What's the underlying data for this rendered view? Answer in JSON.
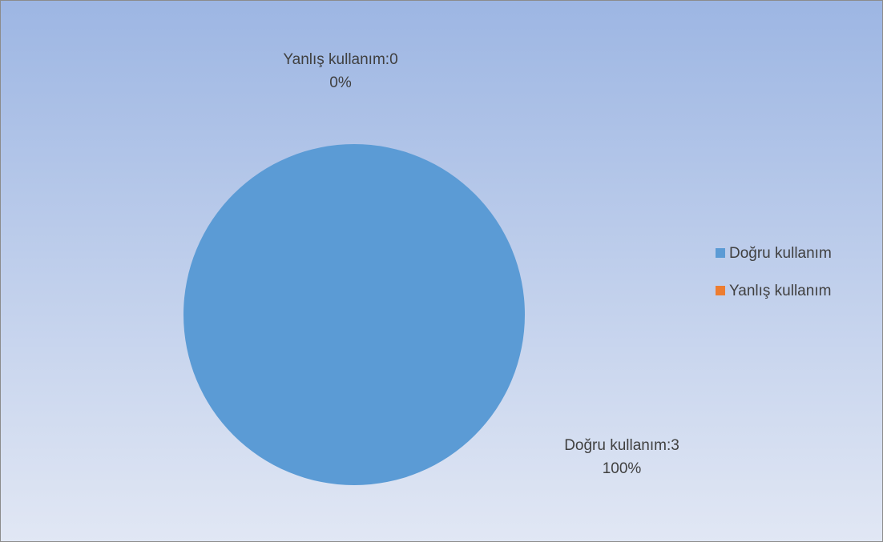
{
  "chart_data": {
    "type": "pie",
    "categories": [
      "Doğru kullanım",
      "Yanlış kullanım"
    ],
    "values": [
      3,
      0
    ],
    "value_labels": [
      "Doğru kullanım:3",
      "Yanlış kullanım:0"
    ],
    "percent_labels": [
      "100%",
      "0%"
    ],
    "colors": [
      "#5b9bd5",
      "#ed7d31"
    ],
    "legend": "right"
  }
}
